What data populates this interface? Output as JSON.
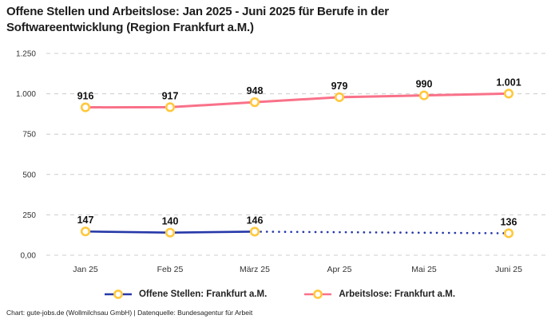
{
  "header": {
    "title": "Offene Stellen und Arbeitslose: Jan 2025 - Juni 2025 für Berufe in der Softwareentwicklung (Region Frankfurt a.M.)"
  },
  "chart_data": {
    "type": "line",
    "title": "Offene Stellen und Arbeitslose: Jan 2025 - Juni 2025 für Berufe in der Softwareentwicklung (Region Frankfurt a.M.)",
    "categories": [
      "Jan 25",
      "Feb 25",
      "März 25",
      "Apr 25",
      "Mai 25",
      "Juni 25"
    ],
    "series": [
      {
        "name": "Arbeitslose: Frankfurt a.M.",
        "color": "#F97189",
        "line_width": 3,
        "values": [
          916,
          917,
          948,
          979,
          990,
          1001
        ],
        "labels": [
          "916",
          "917",
          "948",
          "979",
          "990",
          "1.001"
        ],
        "segments": [
          {
            "from": 0,
            "to": 5,
            "style": "solid"
          }
        ]
      },
      {
        "name": "Offene Stellen: Frankfurt a.M.",
        "color": "#2638A8",
        "line_width": 2.6,
        "values": [
          147,
          140,
          146,
          null,
          null,
          136
        ],
        "labels": [
          "147",
          "140",
          "146",
          null,
          null,
          "136"
        ],
        "segments": [
          {
            "from": 0,
            "to": 2,
            "style": "solid"
          },
          {
            "from": 2,
            "to": 5,
            "style": "dotted"
          }
        ]
      }
    ],
    "ylim": [
      0,
      1250
    ],
    "yticks": [
      {
        "value": 0,
        "label": "0,00"
      },
      {
        "value": 250,
        "label": "250"
      },
      {
        "value": 500,
        "label": "500"
      },
      {
        "value": 750,
        "label": "750"
      },
      {
        "value": 1000,
        "label": "1.000"
      },
      {
        "value": 1250,
        "label": "1.250"
      }
    ],
    "grid": "horizontal dashed",
    "grid_color": "#cccccc",
    "marker": {
      "stroke": "#FFC83D",
      "fill": "#ffffff"
    },
    "legend_position": "bottom"
  },
  "legend": {
    "items": [
      {
        "label": "Offene Stellen: Frankfurt a.M.",
        "series_index": 1
      },
      {
        "label": "Arbeitslose: Frankfurt a.M.",
        "series_index": 0
      }
    ]
  },
  "footer": {
    "credit": "Chart: gute-jobs.de (Wollmilchsau GmbH) | Datenquelle: Bundesagentur für Arbeit"
  }
}
